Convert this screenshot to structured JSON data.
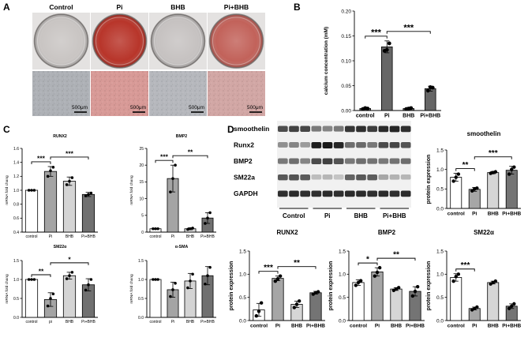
{
  "panels": {
    "A": {
      "letter": "A",
      "groups": [
        "Control",
        "Pi",
        "BHB",
        "Pi+BHB"
      ],
      "scale_label": "500μm",
      "dish_colors": [
        "#c9c5c3",
        "#b8352a",
        "#c6c2c1",
        "#c2625a"
      ],
      "micro_colors": [
        "#aeb1b6",
        "#d89a97",
        "#b6b8bd",
        "#d2a7a5"
      ]
    },
    "B": {
      "letter": "B",
      "chart_data": {
        "type": "bar",
        "categories": [
          "control",
          "Pi",
          "BHB",
          "Pi+BHB"
        ],
        "values": [
          0.004,
          0.128,
          0.004,
          0.044
        ],
        "errors": [
          0.002,
          0.012,
          0.002,
          0.005
        ],
        "points": [
          [
            0.003,
            0.005,
            0.004
          ],
          [
            0.12,
            0.122,
            0.135
          ],
          [
            0.003,
            0.004,
            0.005
          ],
          [
            0.04,
            0.047,
            0.046
          ]
        ],
        "ylabel": "calcium concentration (mM)",
        "ylim": [
          0,
          0.2
        ],
        "yticks": [
          "0.00",
          "0.05",
          "0.10",
          "0.15",
          "0.20"
        ],
        "significance": [
          {
            "from": 0,
            "to": 1,
            "label": "***"
          },
          {
            "from": 1,
            "to": 3,
            "label": "***"
          }
        ]
      }
    },
    "C": {
      "letter": "C",
      "charts": [
        {
          "type": "bar",
          "title": "RUNX2",
          "categories": [
            "control",
            "Pi",
            "BHB",
            "Pi+BHB"
          ],
          "values": [
            1.0,
            1.27,
            1.13,
            0.94
          ],
          "errors": [
            0.0,
            0.07,
            0.06,
            0.03
          ],
          "points": [
            [
              1.0,
              1.0,
              1.0
            ],
            [
              1.2,
              1.28,
              1.33
            ],
            [
              1.08,
              1.13,
              1.18
            ],
            [
              0.92,
              0.94,
              0.96
            ]
          ],
          "ylabel": "mRNA fold chang",
          "ylim": [
            0.4,
            1.6
          ],
          "yticks": [
            "0.4",
            "0.6",
            "0.8",
            "1.0",
            "1.2",
            "1.4",
            "1.6"
          ],
          "significance": [
            {
              "from": 0,
              "to": 1,
              "label": "***"
            },
            {
              "from": 1,
              "to": 3,
              "label": "***"
            }
          ]
        },
        {
          "type": "bar",
          "title": "BMP2",
          "categories": [
            "control",
            "Pi",
            "BHB",
            "Pi+BHB"
          ],
          "values": [
            1.0,
            16.0,
            1.0,
            4.2
          ],
          "errors": [
            0.0,
            4.0,
            0.3,
            1.6
          ],
          "points": [
            [
              1.0,
              1.0,
              1.0
            ],
            [
              12.0,
              16.0,
              20.0
            ],
            [
              0.8,
              1.0,
              1.2
            ],
            [
              2.6,
              4.2,
              5.8
            ]
          ],
          "ylabel": "mRNA fold chang",
          "ylim": [
            0,
            25
          ],
          "yticks": [
            "0",
            "5",
            "10",
            "15",
            "20",
            "25"
          ],
          "significance": [
            {
              "from": 0,
              "to": 1,
              "label": "***"
            },
            {
              "from": 1,
              "to": 3,
              "label": "**"
            }
          ]
        },
        {
          "type": "bar",
          "title": "SM22α",
          "categories": [
            "control",
            "pi",
            "BHB",
            "Pi+BHB"
          ],
          "values": [
            1.0,
            0.47,
            1.1,
            0.86
          ],
          "errors": [
            0.0,
            0.18,
            0.09,
            0.16
          ],
          "points": [
            [
              1.0,
              1.0,
              1.0
            ],
            [
              0.3,
              0.5,
              0.62
            ],
            [
              1.02,
              1.1,
              1.19
            ],
            [
              0.72,
              0.86,
              1.0
            ]
          ],
          "ylabel": "mRNA fold chang",
          "ylim": [
            0,
            1.5
          ],
          "yticks": [
            "0.0",
            "0.5",
            "1.0",
            "1.5"
          ],
          "significance": [
            {
              "from": 0,
              "to": 1,
              "label": "**"
            },
            {
              "from": 1,
              "to": 3,
              "label": "*"
            }
          ]
        },
        {
          "type": "bar",
          "title": "α-SMA",
          "categories": [
            "control",
            "Pi",
            "BHB",
            "Pi+BHB"
          ],
          "values": [
            1.0,
            0.73,
            0.96,
            1.1
          ],
          "errors": [
            0.0,
            0.2,
            0.2,
            0.24
          ],
          "points": [
            [
              1.0,
              1.0,
              1.0
            ],
            [
              0.55,
              0.73,
              0.9
            ],
            [
              0.78,
              0.96,
              1.14
            ],
            [
              0.88,
              1.1,
              1.32
            ]
          ],
          "ylabel": "mRNA fold chang",
          "ylim": [
            0,
            1.5
          ],
          "yticks": [
            "0.0",
            "0.5",
            "1.0",
            "1.5"
          ],
          "significance": []
        }
      ]
    },
    "D": {
      "letter": "D",
      "blot": {
        "rows": [
          "smoothelin",
          "Runx2",
          "BMP2",
          "SM22a",
          "GAPDH"
        ],
        "groups": [
          "Control",
          "Pi",
          "BHB",
          "Pi+BHB"
        ],
        "lanes": 12,
        "intensity": [
          [
            0.75,
            0.8,
            0.78,
            0.55,
            0.5,
            0.55,
            0.85,
            0.88,
            0.82,
            0.9,
            0.92,
            0.88
          ],
          [
            0.45,
            0.5,
            0.4,
            0.95,
            0.98,
            0.92,
            0.6,
            0.62,
            0.55,
            0.75,
            0.78,
            0.72
          ],
          [
            0.55,
            0.6,
            0.5,
            0.75,
            0.8,
            0.72,
            0.55,
            0.6,
            0.58,
            0.55,
            0.58,
            0.6
          ],
          [
            0.7,
            0.72,
            0.68,
            0.25,
            0.28,
            0.22,
            0.65,
            0.7,
            0.68,
            0.35,
            0.3,
            0.28
          ],
          [
            0.88,
            0.9,
            0.88,
            0.88,
            0.9,
            0.88,
            0.9,
            0.9,
            0.88,
            0.9,
            0.88,
            0.9
          ]
        ]
      },
      "charts": [
        {
          "type": "bar",
          "title": "smoothelin",
          "categories": [
            "control",
            "Pi",
            "BHB",
            "Pi+BHB"
          ],
          "values": [
            0.8,
            0.49,
            0.92,
            0.98
          ],
          "errors": [
            0.1,
            0.05,
            0.03,
            0.1
          ],
          "points": [
            [
              0.7,
              0.8,
              0.88
            ],
            [
              0.45,
              0.5,
              0.52
            ],
            [
              0.9,
              0.92,
              0.94
            ],
            [
              0.88,
              1.0,
              1.06
            ]
          ],
          "ylabel": "protein expression",
          "ylim": [
            0,
            1.5
          ],
          "yticks": [
            "0.0",
            "0.5",
            "1.0",
            "1.5"
          ],
          "significance": [
            {
              "from": 0,
              "to": 1,
              "label": "**"
            },
            {
              "from": 1,
              "to": 3,
              "label": "***"
            }
          ]
        },
        {
          "type": "bar",
          "title": "RUNX2",
          "categories": [
            "control",
            "Pi",
            "BHB",
            "Pi+BHB"
          ],
          "values": [
            0.23,
            0.91,
            0.35,
            0.6
          ],
          "errors": [
            0.14,
            0.05,
            0.07,
            0.03
          ],
          "points": [
            [
              0.1,
              0.2,
              0.38
            ],
            [
              0.85,
              0.9,
              0.96
            ],
            [
              0.28,
              0.35,
              0.42
            ],
            [
              0.57,
              0.6,
              0.62
            ]
          ],
          "ylabel": "protein expression",
          "ylim": [
            0,
            1.5
          ],
          "yticks": [
            "0.0",
            "0.5",
            "1.0",
            "1.5"
          ],
          "significance": [
            {
              "from": 0,
              "to": 1,
              "label": "***"
            },
            {
              "from": 1,
              "to": 3,
              "label": "**"
            }
          ]
        },
        {
          "type": "bar",
          "title": "BMP2",
          "categories": [
            "control",
            "Pi",
            "BHB",
            "Pi+BHB"
          ],
          "values": [
            0.82,
            1.05,
            0.68,
            0.63
          ],
          "errors": [
            0.06,
            0.09,
            0.03,
            0.1
          ],
          "points": [
            [
              0.76,
              0.82,
              0.86
            ],
            [
              0.96,
              1.04,
              1.14
            ],
            [
              0.65,
              0.68,
              0.71
            ],
            [
              0.53,
              0.63,
              0.73
            ]
          ],
          "ylabel": "protein expression",
          "ylim": [
            0,
            1.5
          ],
          "yticks": [
            "0.0",
            "0.5",
            "1.0",
            "1.5"
          ],
          "significance": [
            {
              "from": 0,
              "to": 1,
              "label": "*"
            },
            {
              "from": 1,
              "to": 3,
              "label": "**"
            }
          ]
        },
        {
          "type": "bar",
          "title": "SM22α",
          "categories": [
            "control",
            "Pi",
            "BHB",
            "Pi+BHB"
          ],
          "values": [
            0.93,
            0.26,
            0.82,
            0.31
          ],
          "errors": [
            0.08,
            0.03,
            0.03,
            0.05
          ],
          "points": [
            [
              0.85,
              0.95,
              1.0
            ],
            [
              0.23,
              0.26,
              0.29
            ],
            [
              0.79,
              0.82,
              0.85
            ],
            [
              0.26,
              0.31,
              0.36
            ]
          ],
          "ylabel": "protein expression",
          "ylim": [
            0,
            1.5
          ],
          "yticks": [
            "0.0",
            "0.5",
            "1.0",
            "1.5"
          ],
          "significance": [
            {
              "from": 0,
              "to": 1,
              "label": "***"
            }
          ]
        }
      ]
    }
  }
}
